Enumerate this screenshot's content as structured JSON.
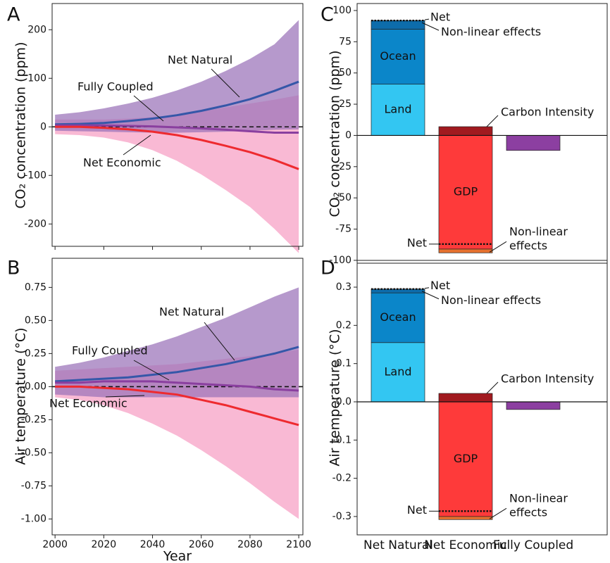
{
  "chart_data": [
    {
      "type": "line",
      "panel": "A",
      "ylabel": "CO₂ concentration (ppm)",
      "x": [
        2000,
        2010,
        2020,
        2030,
        2040,
        2050,
        2060,
        2070,
        2080,
        2090,
        2100
      ],
      "xlim": [
        1998.8,
        2101.7
      ],
      "xticks": [
        2000,
        2020,
        2040,
        2060,
        2080,
        2100
      ],
      "xtick_labels": false,
      "ylim": [
        -246,
        254
      ],
      "yticks": [
        200,
        100,
        0,
        -100,
        -200
      ],
      "zero_line": true,
      "bands": [
        {
          "color": "#f79ec4",
          "lower": [
            -15,
            -17,
            -22,
            -32,
            -48,
            -70,
            -98,
            -130,
            -165,
            -210,
            -260
          ],
          "upper": [
            15,
            15,
            15,
            17,
            20,
            25,
            32,
            40,
            48,
            56,
            65
          ]
        },
        {
          "color": "#9a72b8",
          "lower": [
            -8,
            -9,
            -10,
            -11,
            -12,
            -12,
            -11,
            -10,
            -8,
            -6,
            -5
          ],
          "upper": [
            25,
            30,
            38,
            48,
            60,
            75,
            93,
            115,
            140,
            170,
            220
          ]
        }
      ],
      "series": [
        {
          "name": "Net Natural",
          "color": "#3557a8",
          "values": [
            5,
            6,
            8,
            12,
            17,
            24,
            33,
            44,
            57,
            74,
            93
          ]
        },
        {
          "name": "Fully Coupled",
          "color": "#8a3f9f",
          "values": [
            3,
            3,
            3,
            2,
            1,
            -1,
            -3,
            -6,
            -9,
            -12,
            -12
          ]
        },
        {
          "name": "Net Economic",
          "color": "#ee2a2f",
          "values": [
            0,
            0,
            -2,
            -5,
            -10,
            -17,
            -27,
            -39,
            -52,
            -68,
            -87
          ]
        }
      ]
    },
    {
      "type": "line",
      "panel": "B",
      "ylabel": "Air temperature (°C)",
      "xlabel": "Year",
      "x": [
        2000,
        2010,
        2020,
        2030,
        2040,
        2050,
        2060,
        2070,
        2080,
        2090,
        2100
      ],
      "xlim": [
        1998.8,
        2101.7
      ],
      "xticks": [
        2000,
        2020,
        2040,
        2060,
        2080,
        2100
      ],
      "xtick_labels": true,
      "ylim": [
        -1.12,
        0.97
      ],
      "yticks": [
        {
          "value": 0.75,
          "label": "0.75"
        },
        {
          "value": 0.5,
          "label": "0.50"
        },
        {
          "value": 0.25,
          "label": "0.25"
        },
        {
          "value": 0,
          "label": "0.00"
        },
        {
          "value": -0.25,
          "label": "-0.25"
        },
        {
          "value": -0.5,
          "label": "-0.50"
        },
        {
          "value": -0.75,
          "label": "-0.75"
        },
        {
          "value": -1,
          "label": "-1.00"
        }
      ],
      "zero_line": true,
      "bands": [
        {
          "color": "#f79ec4",
          "lower": [
            -0.08,
            -0.1,
            -0.14,
            -0.2,
            -0.28,
            -0.37,
            -0.48,
            -0.6,
            -0.73,
            -0.87,
            -1.0
          ],
          "upper": [
            0.12,
            0.13,
            0.14,
            0.15,
            0.16,
            0.17,
            0.19,
            0.21,
            0.23,
            0.25,
            0.28
          ]
        },
        {
          "color": "#9a72b8",
          "lower": [
            -0.06,
            -0.07,
            -0.08,
            -0.08,
            -0.08,
            -0.08,
            -0.08,
            -0.08,
            -0.08,
            -0.08,
            -0.08
          ],
          "upper": [
            0.15,
            0.18,
            0.22,
            0.27,
            0.32,
            0.38,
            0.45,
            0.52,
            0.6,
            0.68,
            0.75
          ]
        }
      ],
      "series": [
        {
          "name": "Net Natural",
          "color": "#3557a8",
          "values": [
            0.04,
            0.05,
            0.06,
            0.07,
            0.09,
            0.11,
            0.14,
            0.17,
            0.21,
            0.25,
            0.3
          ]
        },
        {
          "name": "Fully Coupled",
          "color": "#8a3f9f",
          "values": [
            0.03,
            0.03,
            0.04,
            0.04,
            0.04,
            0.03,
            0.02,
            0.01,
            0,
            -0.02,
            -0.03
          ]
        },
        {
          "name": "Net Economic",
          "color": "#ee2a2f",
          "values": [
            0,
            0,
            -0.01,
            -0.02,
            -0.04,
            -0.06,
            -0.1,
            -0.14,
            -0.19,
            -0.24,
            -0.29
          ]
        }
      ]
    },
    {
      "type": "stacked_bar",
      "panel": "C",
      "ylabel": "CO₂ concentration (ppm)",
      "ylim": [
        -102.3,
        105.6
      ],
      "yticks": [
        100,
        75,
        50,
        25,
        0,
        -25,
        -50,
        -75,
        -100
      ],
      "zero_line": true,
      "bars": [
        {
          "segments": [
            {
              "name": "Land",
              "value": 41,
              "color": "#33c6f2",
              "label_color": "#0d3d70"
            },
            {
              "name": "Ocean",
              "value": 44,
              "color": "#0b86c9",
              "label_color": "#ffffff"
            },
            {
              "name": "Non-linear effects",
              "value": 7,
              "color": "#0d6cab",
              "label_color": "#1a7cc0"
            }
          ],
          "net": {
            "label": "Net",
            "value": 92
          }
        },
        {
          "segments": [
            {
              "name": "Carbon Intensity",
              "value": 7,
              "color": "#a11a1f",
              "label_color": "#9a1a1e"
            },
            {
              "name": "GDP",
              "value": -91,
              "color": "#fe3a3a",
              "label_color": "#5a0a0a"
            },
            {
              "name": "Non-linear effects",
              "value": -3,
              "color": "#e5702e",
              "label_color": "#f04a3a"
            }
          ],
          "net": {
            "label": "Net",
            "value": -87
          }
        },
        {
          "segments": [
            {
              "value": -12,
              "color": "#8c3fa1"
            }
          ]
        }
      ]
    },
    {
      "type": "stacked_bar",
      "panel": "D",
      "ylabel": "Air temperature (°C)",
      "ylim": [
        -0.348,
        0.37
      ],
      "yticks": [
        0.3,
        0.2,
        0.1,
        {
          "value": 0,
          "label": "0.0"
        },
        -0.1,
        -0.2,
        -0.3
      ],
      "zero_line": true,
      "categories": [
        "Net Natural",
        "Net Economic",
        "Fully Coupled"
      ],
      "category_colors": [
        "#3557a8",
        "#ee2a2f",
        "#8a3f9f"
      ],
      "bars": [
        {
          "segments": [
            {
              "name": "Land",
              "value": 0.155,
              "color": "#33c6f2",
              "label_color": "#0d3d70"
            },
            {
              "name": "Ocean",
              "value": 0.13,
              "color": "#0b86c9",
              "label_color": "#ffffff"
            },
            {
              "name": "Non-linear effects",
              "value": 0.01,
              "color": "#0d6cab",
              "label_color": "#1a7cc0"
            }
          ],
          "net": {
            "label": "Net",
            "value": 0.295
          }
        },
        {
          "segments": [
            {
              "name": "Carbon Intensity",
              "value": 0.022,
              "color": "#a11a1f",
              "label_color": "#9a1a1e"
            },
            {
              "name": "GDP",
              "value": -0.3,
              "color": "#fe3a3a",
              "label_color": "#5a0a0a"
            },
            {
              "name": "Non-linear effects",
              "value": -0.008,
              "color": "#e5702e",
              "label_color": "#f04a3a"
            }
          ],
          "net": {
            "label": "Net",
            "value": -0.286
          }
        },
        {
          "segments": [
            {
              "value": -0.02,
              "color": "#8c3fa1"
            }
          ]
        }
      ]
    }
  ]
}
